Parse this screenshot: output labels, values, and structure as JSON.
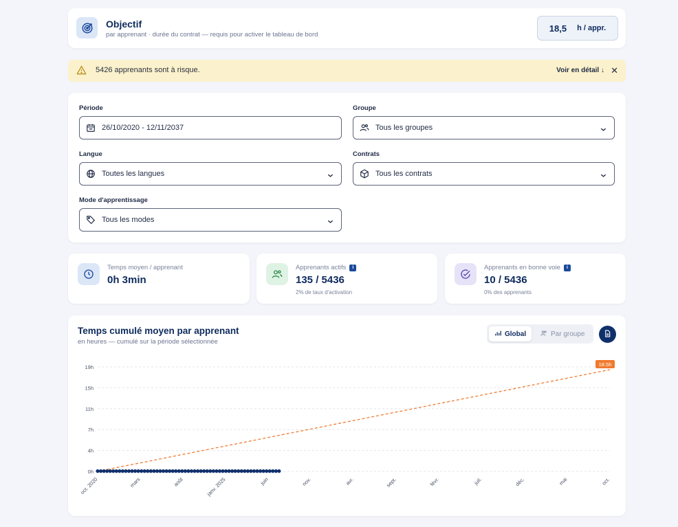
{
  "objective": {
    "title": "Objectif",
    "subtitle": "par apprenant · durée du contrat — requis pour activer le tableau de bord",
    "value": "18,5",
    "unit": "h / appr.",
    "icon": "target-icon"
  },
  "alert": {
    "text": "5426 apprenants sont à risque.",
    "link": "Voir en détail ↓",
    "close": "✕",
    "icon": "warning-icon",
    "bg_color": "#fbf1cc"
  },
  "filters": {
    "period": {
      "label": "Période",
      "value": "26/10/2020 - 12/11/2037",
      "icon": "calendar-icon"
    },
    "group": {
      "label": "Groupe",
      "value": "Tous les groupes",
      "icon": "users-icon"
    },
    "language": {
      "label": "Langue",
      "value": "Toutes les langues",
      "icon": "globe-icon"
    },
    "contracts": {
      "label": "Contrats",
      "value": "Tous les contrats",
      "icon": "box-icon"
    },
    "mode": {
      "label": "Mode d'apprentissage",
      "value": "Tous les modes",
      "icon": "tag-icon"
    }
  },
  "kpis": [
    {
      "label": "Temps moyen / apprenant",
      "value": "0h 3min",
      "sub": "",
      "icon": "clock-icon",
      "color": "#dbe6f7"
    },
    {
      "label": "Apprenants actifs",
      "value": "135 / 5436",
      "sub": "2% de taux d'activation",
      "icon": "users-icon",
      "color": "#dff3e4"
    },
    {
      "label": "Apprenants en bonne voie",
      "value": "10 / 5436",
      "sub": "0% des apprenants",
      "icon": "check-circle-icon",
      "color": "#e6e2f8"
    }
  ],
  "chart": {
    "title": "Temps cumulé moyen par apprenant",
    "subtitle": "en heures — cumulé sur la période sélectionnée",
    "toggle_global": "Global",
    "toggle_group": "Par groupe",
    "accent_color": "#10306b",
    "target_color": "#f07a2e"
  },
  "chart_data": {
    "type": "line",
    "y_ticks": [
      "0h",
      "4h",
      "7h",
      "11h",
      "15h",
      "19h"
    ],
    "ylim": [
      0,
      19
    ],
    "x_tick_labels": [
      "oct. 2020",
      "mars",
      "août",
      "janv. 2025",
      "juin",
      "nov.",
      "avr.",
      "sept.",
      "févr.",
      "juil.",
      "déc.",
      "mai",
      "oct."
    ],
    "grid": true,
    "series": [
      {
        "name": "",
        "style": "dots",
        "points_count": 59,
        "x_end_index": 4.25,
        "values_constant": 0.05
      },
      {
        "name": "",
        "style": "dashed",
        "x": [
          0,
          12
        ],
        "values": [
          0,
          18.5
        ]
      }
    ],
    "annotation": "18.5h"
  }
}
